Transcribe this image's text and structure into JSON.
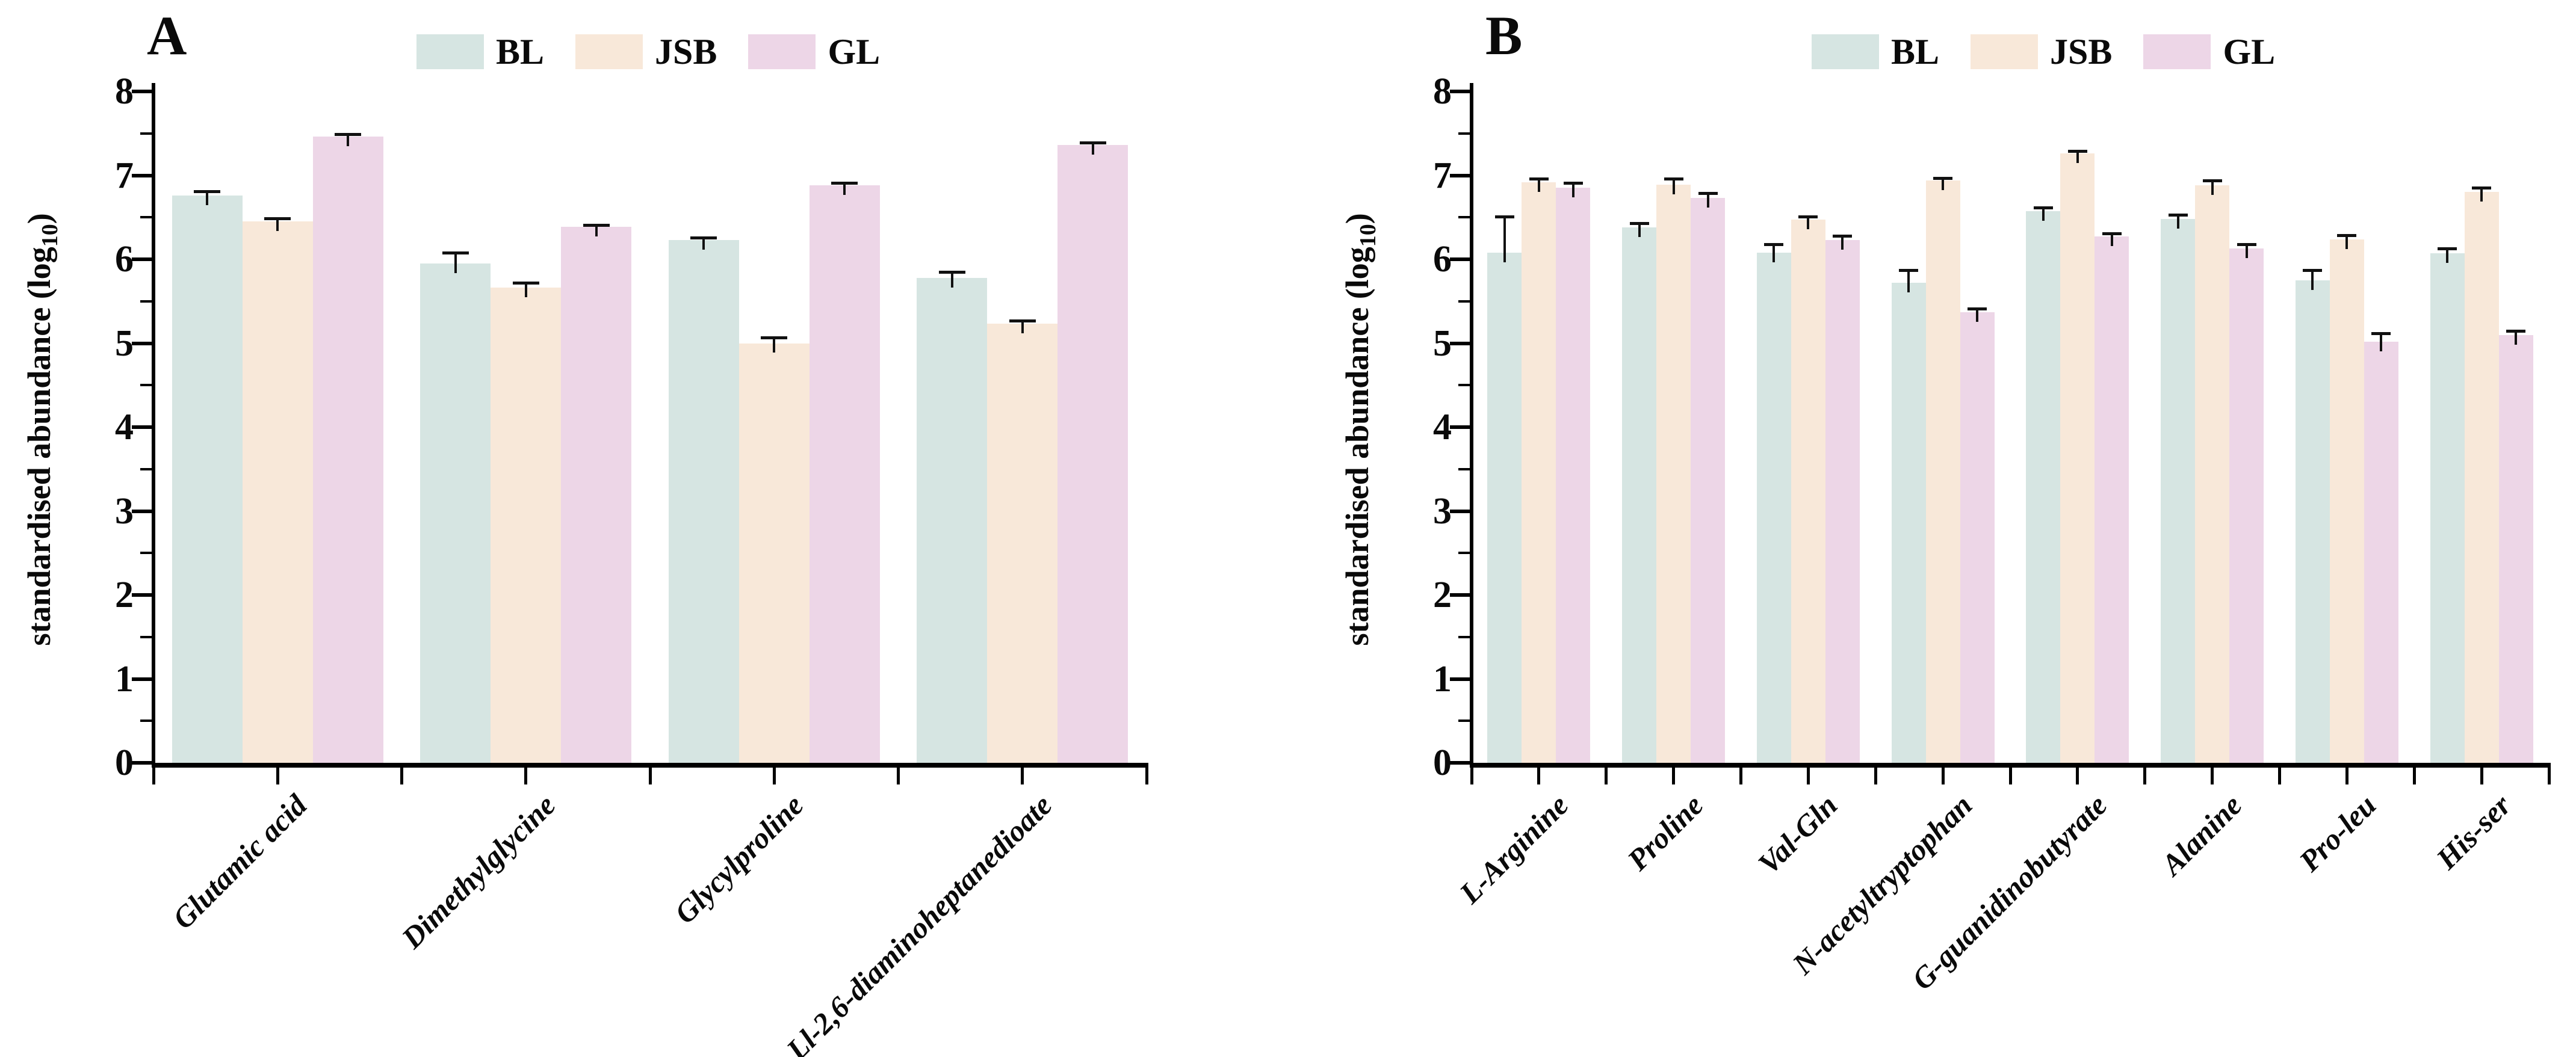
{
  "figure": {
    "background": "#ffffff",
    "axis_color": "#000000",
    "error_bar_color": "#111111"
  },
  "chart_data": [
    {
      "type": "bar",
      "panel_label": "A",
      "ylabel": {
        "pre": "standardised abundance (log",
        "sub": "10",
        "post": ")"
      },
      "ylim": [
        0,
        8
      ],
      "ytick_step": 1,
      "yminor_step": 0.5,
      "grid": false,
      "legend_position": "top-center",
      "legend": [
        "BL",
        "JSB",
        "GL"
      ],
      "categories": [
        "Glutamic acid",
        "Dimethylglycine",
        "Glycylproline",
        "Ll-2,6-diaminoheptanedioate"
      ],
      "series": [
        {
          "name": "BL",
          "color": "#d6e5e2",
          "values": [
            6.76,
            5.95,
            6.23,
            5.78
          ],
          "errors": [
            0.05,
            0.13,
            0.03,
            0.07
          ]
        },
        {
          "name": "JSB",
          "color": "#f8e8d9",
          "values": [
            6.45,
            5.66,
            5.0,
            5.23
          ],
          "errors": [
            0.04,
            0.06,
            0.07,
            0.04
          ]
        },
        {
          "name": "GL",
          "color": "#edd6e7",
          "values": [
            7.46,
            6.39,
            6.88,
            7.36
          ],
          "errors": [
            0.03,
            0.02,
            0.03,
            0.03
          ]
        }
      ]
    },
    {
      "type": "bar",
      "panel_label": "B",
      "ylabel": {
        "pre": "standardised abundance (log",
        "sub": "10",
        "post": ")"
      },
      "ylim": [
        0,
        8
      ],
      "ytick_step": 1,
      "yminor_step": 0.5,
      "grid": false,
      "legend_position": "top-center",
      "legend": [
        "BL",
        "JSB",
        "GL"
      ],
      "categories": [
        "L-Arginine",
        "Proline",
        "Val-Gln",
        "N-acetyltryptophan",
        "G-guanidinobutyrate",
        "Alanine",
        "Pro-leu",
        "His-ser"
      ],
      "series": [
        {
          "name": "BL",
          "color": "#d6e5e2",
          "values": [
            6.08,
            6.38,
            6.08,
            5.72,
            6.57,
            6.48,
            5.75,
            6.07
          ],
          "errors": [
            0.43,
            0.05,
            0.1,
            0.15,
            0.05,
            0.05,
            0.12,
            0.06
          ]
        },
        {
          "name": "JSB",
          "color": "#f8e8d9",
          "values": [
            6.92,
            6.89,
            6.47,
            6.94,
            7.26,
            6.88,
            6.24,
            6.8
          ],
          "errors": [
            0.04,
            0.07,
            0.04,
            0.03,
            0.03,
            0.06,
            0.05,
            0.05
          ]
        },
        {
          "name": "GL",
          "color": "#edd6e7",
          "values": [
            6.85,
            6.73,
            6.23,
            5.37,
            6.27,
            6.13,
            5.02,
            5.1
          ],
          "errors": [
            0.06,
            0.06,
            0.05,
            0.04,
            0.04,
            0.05,
            0.1,
            0.05
          ]
        }
      ]
    }
  ]
}
